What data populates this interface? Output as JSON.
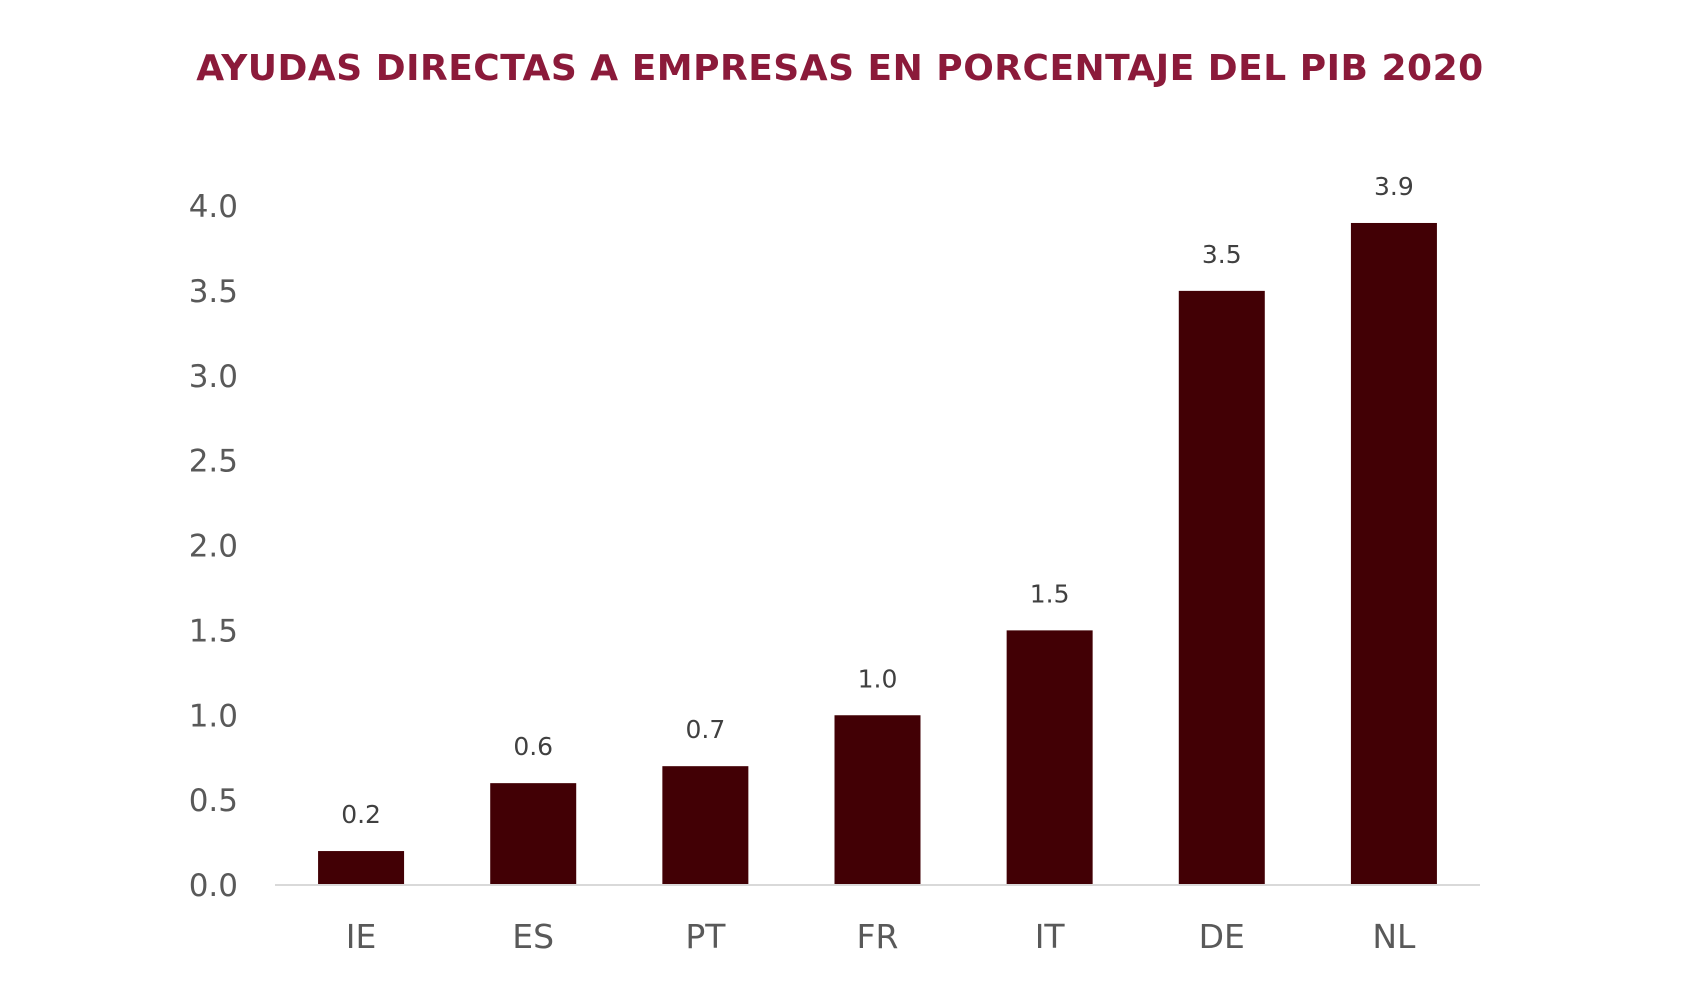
{
  "chart_data": {
    "type": "bar",
    "title": "AYUDAS DIRECTAS A EMPRESAS EN PORCENTAJE DEL PIB 2020",
    "categories": [
      "IE",
      "ES",
      "PT",
      "FR",
      "IT",
      "DE",
      "NL"
    ],
    "values": [
      0.2,
      0.6,
      0.7,
      1.0,
      1.5,
      3.5,
      3.9
    ],
    "value_labels": [
      "0.2",
      "0.6",
      "0.7",
      "1.0",
      "1.5",
      "3.5",
      "3.9"
    ],
    "y_ticks": [
      "0.0",
      "0.5",
      "1.0",
      "1.5",
      "2.0",
      "2.5",
      "3.0",
      "3.5",
      "4.0"
    ],
    "ylim": [
      0,
      4.0
    ],
    "xlabel": "",
    "ylabel": "",
    "grid": false,
    "legend": "none",
    "colors": {
      "bar": "#420005",
      "title": "#8b1a3a",
      "axis": "#d9d9d9",
      "tick_text": "#595959",
      "label_text": "#404040"
    }
  }
}
